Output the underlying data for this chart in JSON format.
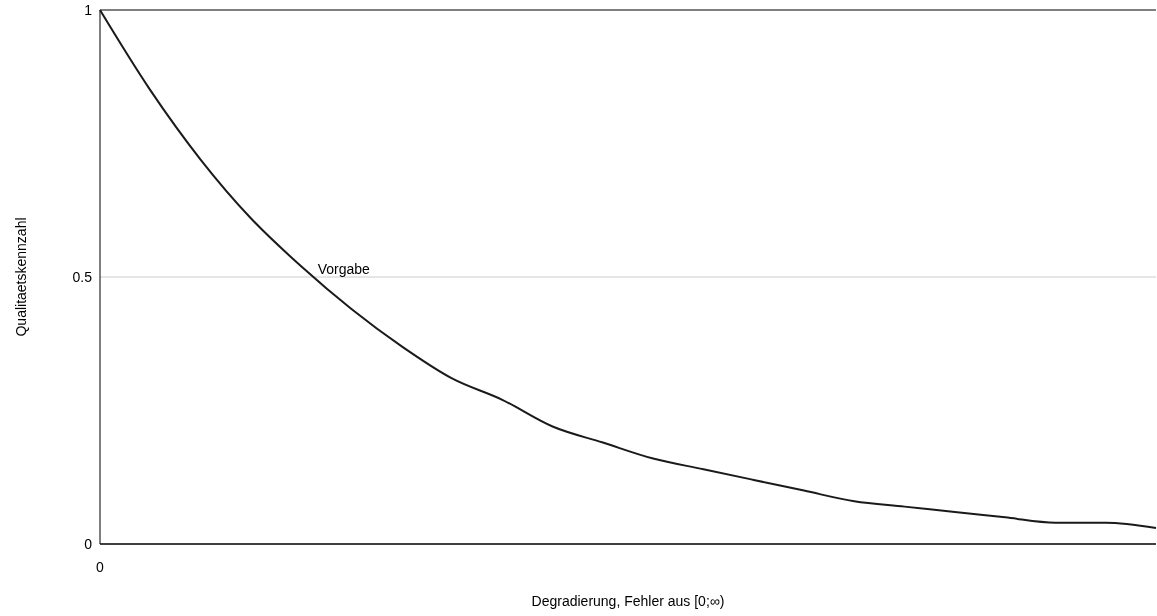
{
  "chart_data": {
    "type": "line",
    "xlabel": "Degradierung, Fehler aus [0;∞)",
    "ylabel": "Qualitaetskennzahl",
    "categories": [
      "0",
      null,
      null,
      null,
      null,
      null,
      null,
      null,
      null,
      null,
      null,
      null,
      null,
      null,
      null,
      null,
      null,
      null,
      null,
      null,
      null,
      null
    ],
    "values": [
      1,
      0.85,
      0.72,
      0.61,
      0.52,
      0.44,
      0.37,
      0.31,
      0.27,
      0.22,
      0.19,
      0.16,
      0.14,
      0.12,
      0.1,
      0.08,
      0.07,
      0.06,
      0.05,
      0.04,
      0.04,
      0.03
    ],
    "color": "#1a1a1a",
    "ylim": [
      0,
      1
    ],
    "yticks": [
      0,
      0.5,
      1
    ],
    "grid": "y",
    "annotations": [
      "Vorgabe"
    ]
  }
}
